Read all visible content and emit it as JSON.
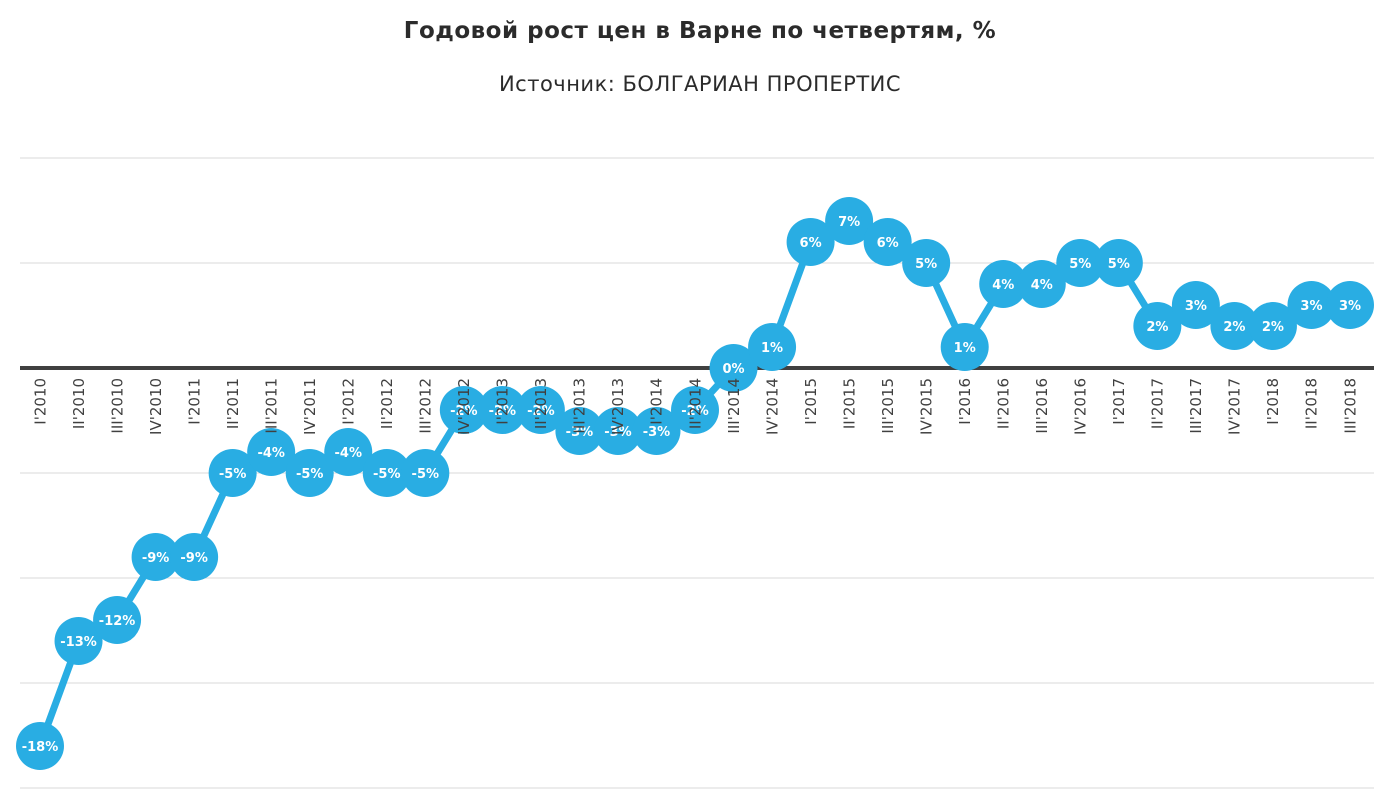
{
  "header": {
    "title": "Годовой рост цен в Варне по четвертям, %",
    "subtitle": "Источник: БОЛГАРИАН ПРОПЕРТИС"
  },
  "chart_data": {
    "type": "line",
    "title": "Годовой рост цен в Варне по четвертям, %",
    "subtitle": "Источник: БОЛГАРИАН ПРОПЕРТИС",
    "categories": [
      "I'2010",
      "II'2010",
      "III'2010",
      "IV'2010",
      "I'2011",
      "II'2011",
      "III'2011",
      "IV'2011",
      "I'2012",
      "II'2012",
      "III'2012",
      "IV'2012",
      "I'2013",
      "II'2013",
      "III'2013",
      "IV'2013",
      "I'2014",
      "II'2014",
      "III'2014",
      "IV'2014",
      "I'2015",
      "II'2015",
      "III'2015",
      "IV'2015",
      "I'2016",
      "II'2016",
      "III'2016",
      "IV'2016",
      "I'2017",
      "II'2017",
      "III'2017",
      "IV'2017",
      "I'2018",
      "II'2018",
      "III'2018"
    ],
    "values": [
      -18,
      -13,
      -12,
      -9,
      -9,
      -5,
      -4,
      -5,
      -4,
      -5,
      -5,
      -2,
      -2,
      -2,
      -3,
      -3,
      -3,
      -2,
      0,
      1,
      6,
      7,
      6,
      5,
      1,
      4,
      4,
      5,
      5,
      2,
      3,
      2,
      2,
      3,
      3
    ],
    "point_labels": [
      "-18%",
      "-13%",
      "-12%",
      "-9%",
      "-9%",
      "-5%",
      "-4%",
      "-5%",
      "-4%",
      "-5%",
      "-5%",
      "-2%",
      "-2%",
      "-2%",
      "-3%",
      "-3%",
      "-3%",
      "-2%",
      "0%",
      "1%",
      "6%",
      "7%",
      "6%",
      "5%",
      "1%",
      "4%",
      "4%",
      "5%",
      "5%",
      "2%",
      "3%",
      "2%",
      "2%",
      "3%",
      "3%"
    ],
    "ylabel": "",
    "xlabel": "",
    "ylim": [
      -20,
      10
    ],
    "gridline_step": 5,
    "gridline_values": [
      10,
      5,
      0,
      -5,
      -10,
      -15,
      -20
    ],
    "grid": true,
    "legend": "none",
    "colors": {
      "series": "#29ade3",
      "point_label_text": "#ffffff",
      "zero_axis": "#404040",
      "gridline": "#d9d9d9",
      "axis_label_text": "#404040",
      "title_text": "#2b2b2b"
    }
  }
}
